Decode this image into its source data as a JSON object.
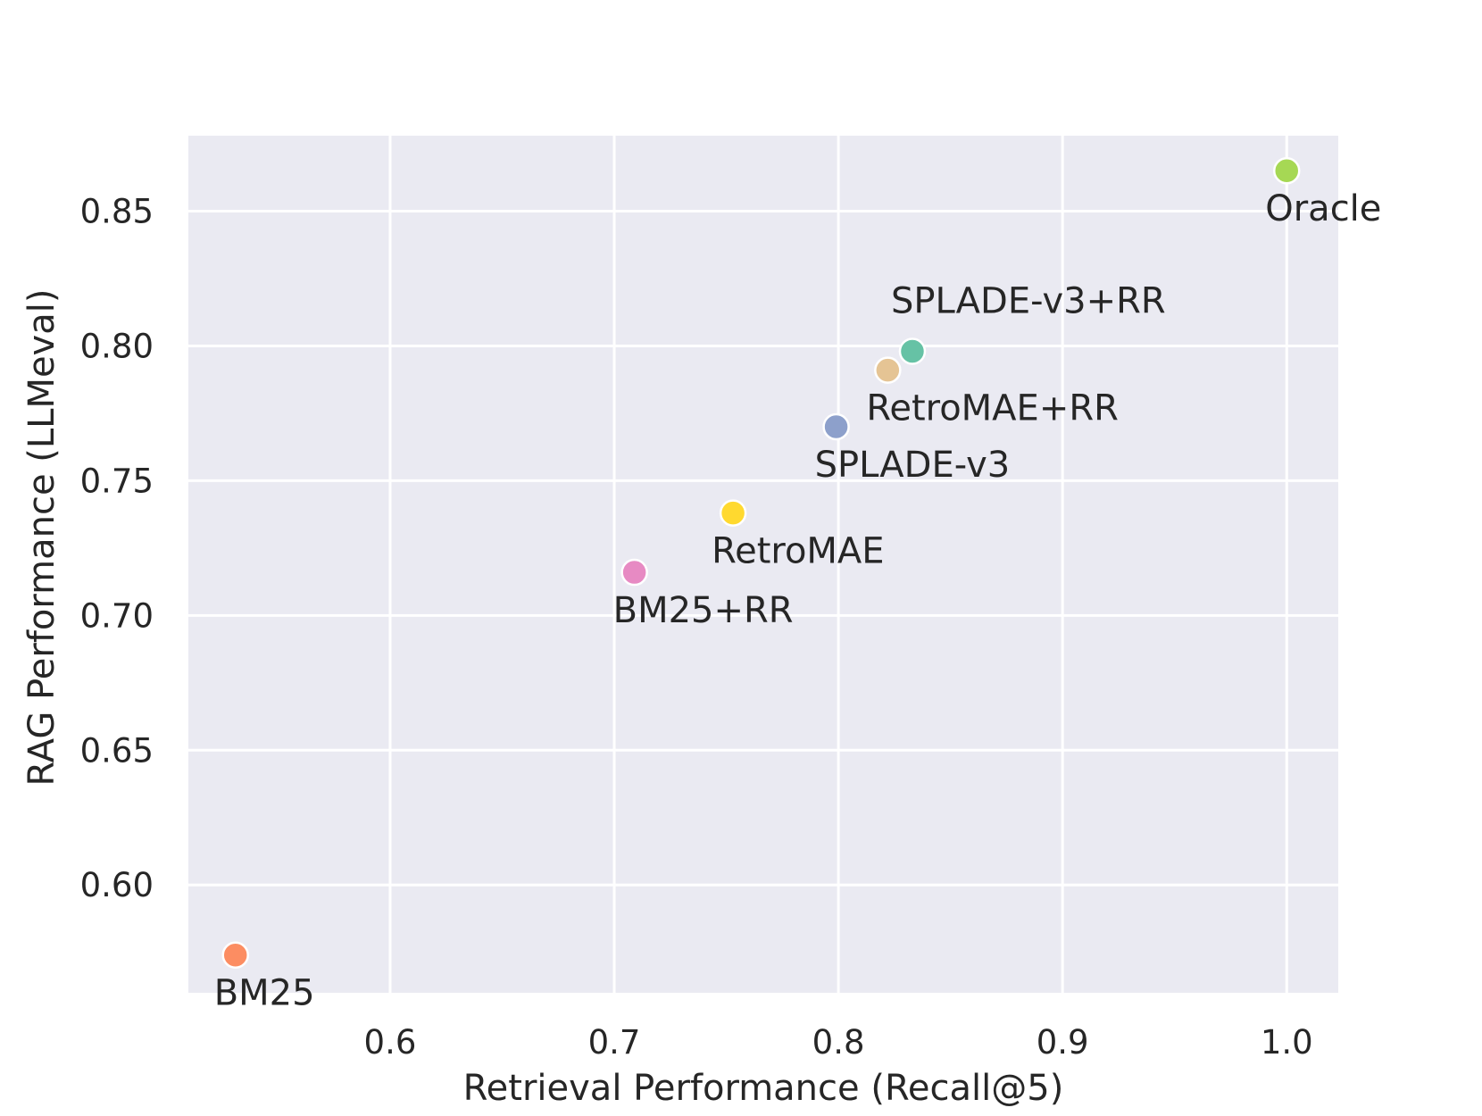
{
  "chart_data": {
    "type": "scatter",
    "title": "",
    "xlabel": "Retrieval Performance (Recall@5)",
    "ylabel": "RAG Performance (LLMeval)",
    "xlim": [
      0.51,
      1.023
    ],
    "ylim": [
      0.56,
      0.878
    ],
    "grid": true,
    "xticks": [
      0.6,
      0.7,
      0.8,
      0.9,
      1.0
    ],
    "xtick_labels": [
      "0.6",
      "0.7",
      "0.8",
      "0.9",
      "1.0"
    ],
    "yticks": [
      0.6,
      0.65,
      0.7,
      0.75,
      0.8,
      0.85
    ],
    "ytick_labels": [
      "0.60",
      "0.65",
      "0.70",
      "0.75",
      "0.80",
      "0.85"
    ],
    "points": [
      {
        "name": "BM25",
        "label": "BM25",
        "x": 0.531,
        "y": 0.574,
        "color": "#fc8d62",
        "label_pos": "below"
      },
      {
        "name": "BM25+RR",
        "label": "BM25+RR",
        "x": 0.709,
        "y": 0.716,
        "color": "#e78ac3",
        "label_pos": "below"
      },
      {
        "name": "RetroMAE",
        "label": "RetroMAE",
        "x": 0.753,
        "y": 0.738,
        "color": "#ffd92f",
        "label_pos": "below"
      },
      {
        "name": "SPLADE-v3",
        "label": "SPLADE-v3",
        "x": 0.799,
        "y": 0.77,
        "color": "#8da0cb",
        "label_pos": "below"
      },
      {
        "name": "RetroMAE+RR",
        "label": "RetroMAE+RR",
        "x": 0.822,
        "y": 0.791,
        "color": "#e5c494",
        "label_pos": "below-right"
      },
      {
        "name": "SPLADE-v3+RR",
        "label": "SPLADE-v3+RR",
        "x": 0.833,
        "y": 0.798,
        "color": "#66c2a5",
        "label_pos": "above"
      },
      {
        "name": "Oracle",
        "label": "Oracle",
        "x": 1.0,
        "y": 0.865,
        "color": "#a6d854",
        "label_pos": "below"
      }
    ],
    "colors": {
      "plot_background": "#eaeaf2",
      "grid": "#ffffff",
      "text": "#262626"
    }
  }
}
